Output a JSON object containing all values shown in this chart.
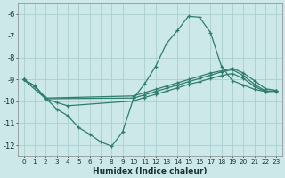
{
  "xlabel": "Humidex (Indice chaleur)",
  "bg_color": "#cce8e8",
  "grid_color": "#aad0d0",
  "line_color": "#2e7d6e",
  "xlim": [
    -0.5,
    23.5
  ],
  "ylim": [
    -12.5,
    -5.5
  ],
  "xticks": [
    0,
    1,
    2,
    3,
    4,
    5,
    6,
    7,
    8,
    9,
    10,
    11,
    12,
    13,
    14,
    15,
    16,
    17,
    18,
    19,
    20,
    21,
    22,
    23
  ],
  "yticks": [
    -12,
    -11,
    -10,
    -9,
    -8,
    -7,
    -6
  ],
  "line1_x": [
    0,
    1,
    2,
    3,
    4,
    5,
    6,
    7,
    8,
    9,
    10,
    11,
    12,
    13,
    14,
    15,
    16,
    17,
    18,
    19,
    20,
    21,
    22,
    23
  ],
  "line1_y": [
    -9.0,
    -9.3,
    -9.85,
    -10.35,
    -10.65,
    -11.2,
    -11.5,
    -11.85,
    -12.05,
    -11.4,
    -9.85,
    -9.2,
    -8.4,
    -7.35,
    -6.75,
    -6.1,
    -6.15,
    -6.85,
    -8.4,
    -9.05,
    -9.25,
    -9.45,
    -9.55,
    -9.52
  ],
  "line2_x": [
    0,
    1,
    2,
    10,
    11,
    12,
    13,
    14,
    15,
    16,
    17,
    18,
    19,
    20,
    21,
    22,
    23
  ],
  "line2_y": [
    -9.0,
    -9.28,
    -9.85,
    -9.75,
    -9.6,
    -9.45,
    -9.3,
    -9.15,
    -9.0,
    -8.85,
    -8.7,
    -8.6,
    -8.48,
    -8.7,
    -9.05,
    -9.42,
    -9.5
  ],
  "line3_x": [
    0,
    1,
    2,
    10,
    11,
    12,
    13,
    14,
    15,
    16,
    17,
    18,
    19,
    20,
    21,
    22,
    23
  ],
  "line3_y": [
    -9.0,
    -9.3,
    -9.88,
    -9.85,
    -9.7,
    -9.55,
    -9.4,
    -9.25,
    -9.1,
    -8.95,
    -8.8,
    -8.65,
    -8.55,
    -8.82,
    -9.22,
    -9.52,
    -9.53
  ],
  "line4_x": [
    0,
    2,
    3,
    4,
    10,
    11,
    12,
    13,
    14,
    15,
    16,
    17,
    18,
    19,
    20,
    21,
    22,
    23
  ],
  "line4_y": [
    -9.0,
    -9.88,
    -10.05,
    -10.2,
    -9.98,
    -9.82,
    -9.68,
    -9.53,
    -9.38,
    -9.22,
    -9.1,
    -8.95,
    -8.82,
    -8.72,
    -8.95,
    -9.32,
    -9.55,
    -9.54
  ]
}
